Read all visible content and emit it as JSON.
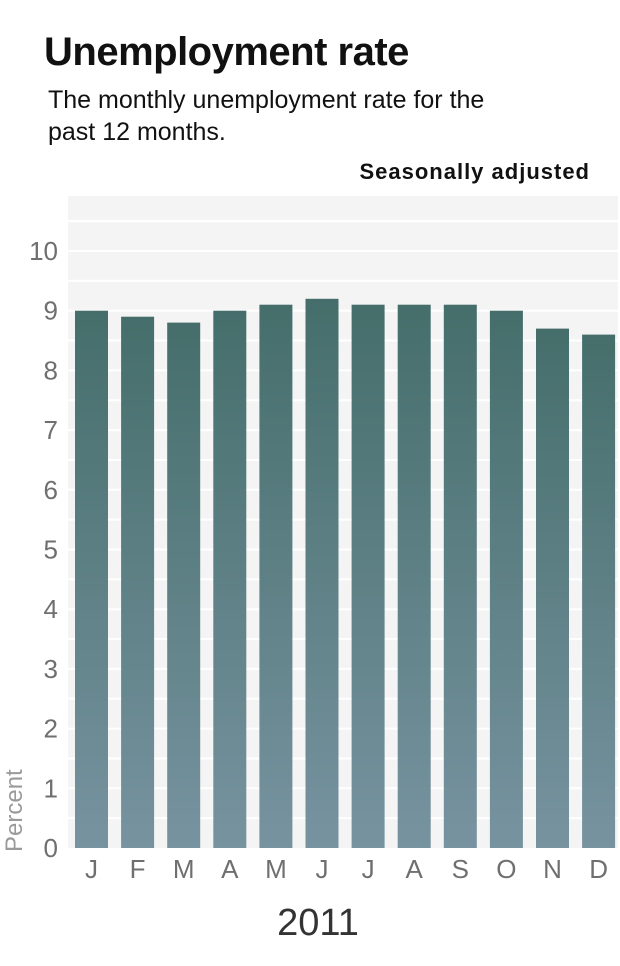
{
  "chart_data": {
    "type": "bar",
    "title": "Unemployment rate",
    "subtitle": "The monthly unemployment rate for the past 12 months.",
    "note": "Seasonally adjusted",
    "categories": [
      "J",
      "F",
      "M",
      "A",
      "M",
      "J",
      "J",
      "A",
      "S",
      "O",
      "N",
      "D"
    ],
    "values": [
      9.0,
      8.9,
      8.8,
      9.0,
      9.1,
      9.2,
      9.1,
      9.1,
      9.1,
      9.0,
      8.7,
      8.6
    ],
    "ylabel": "Percent",
    "xlabel": "2011",
    "ylim": [
      0,
      11
    ],
    "yticks": [
      0,
      1,
      2,
      3,
      4,
      5,
      6,
      7,
      8,
      9,
      10
    ],
    "grid": true,
    "colors": {
      "bar_top": "#456e6b",
      "bar_bottom": "#7793a0",
      "plot_background": "#f4f4f4",
      "gridline": "#ffffff"
    }
  }
}
